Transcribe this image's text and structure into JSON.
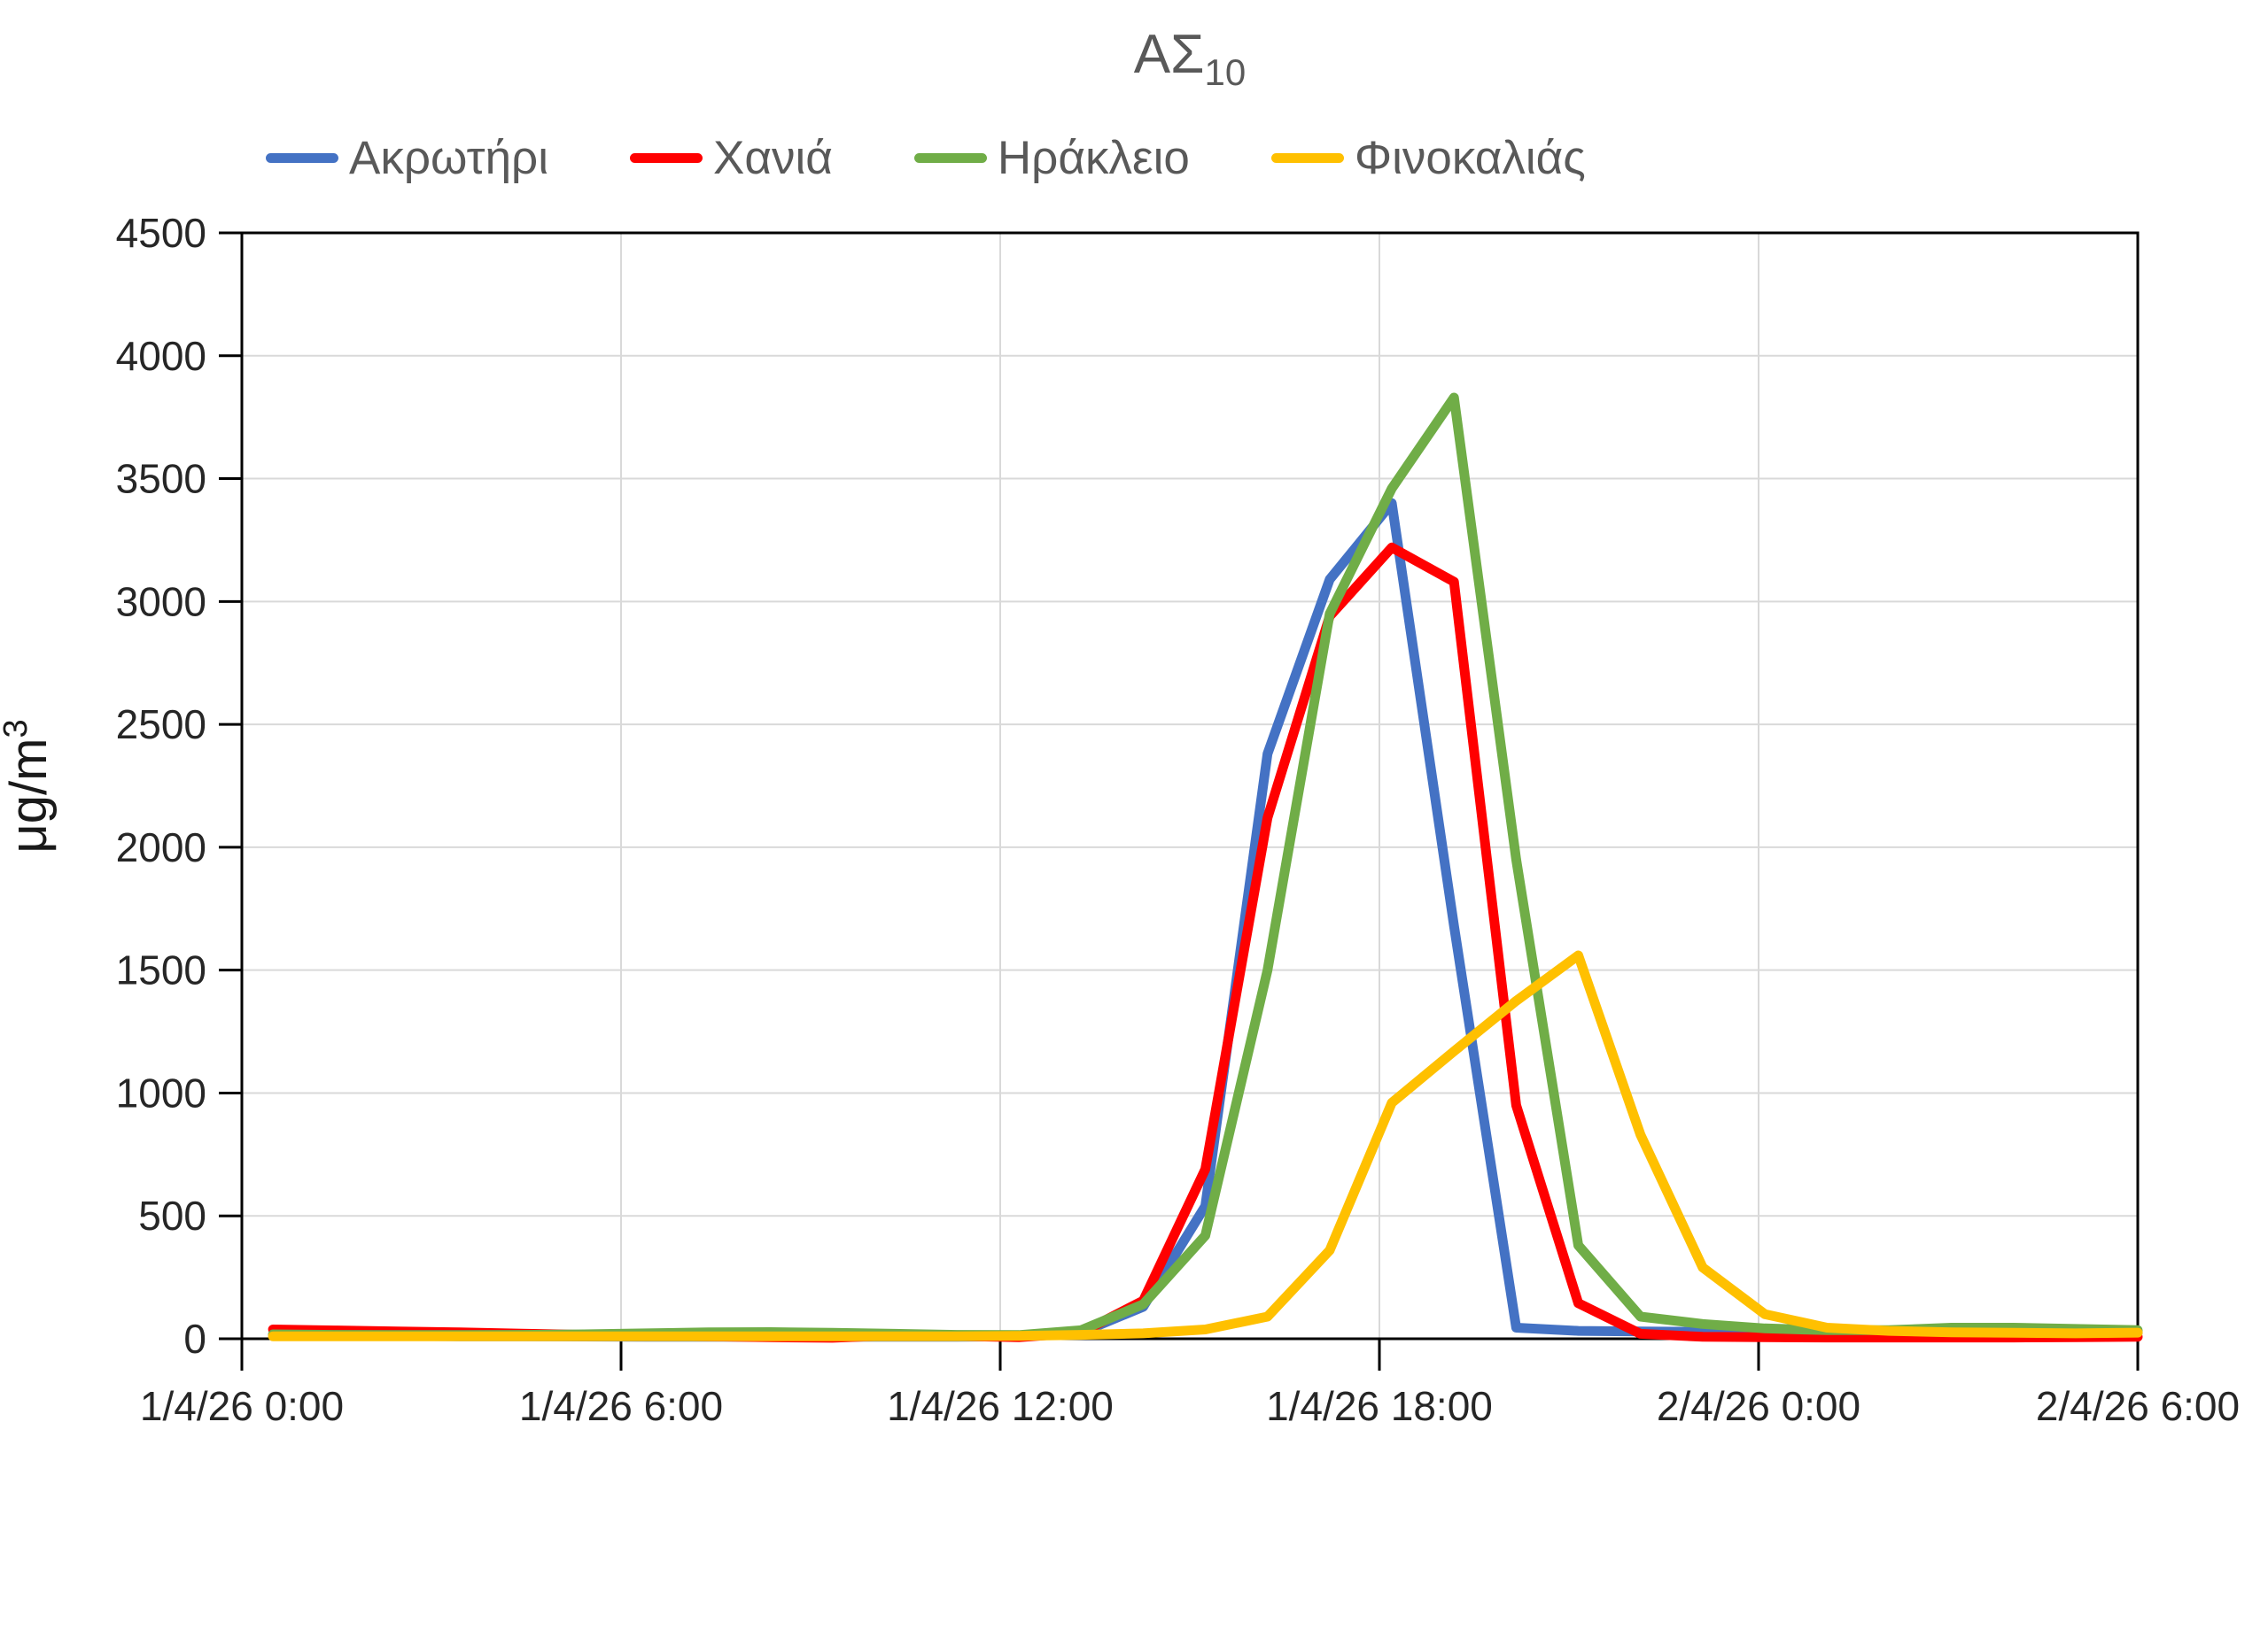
{
  "title": {
    "text": "ΑΣ",
    "subscript": "10"
  },
  "y_axis": {
    "label_main": "μg/m",
    "label_superscript": "3",
    "tick_labels": [
      "0",
      "500",
      "1000",
      "1500",
      "2000",
      "2500",
      "3000",
      "3500",
      "4000",
      "4500"
    ],
    "max": 4500
  },
  "x_axis": {
    "tick_labels": [
      "1/4/26 0:00",
      "1/4/26 6:00",
      "1/4/26 12:00",
      "1/4/26 18:00",
      "2/4/26 0:00",
      "2/4/26 6:00"
    ],
    "tick_hours": [
      0,
      6,
      12,
      18,
      24,
      30
    ]
  },
  "legend": {
    "items": [
      {
        "label": "Ακρωτήρι",
        "color": "#4472C4"
      },
      {
        "label": "Χανιά",
        "color": "#FF0000"
      },
      {
        "label": "Ηράκλειο",
        "color": "#70AD47"
      },
      {
        "label": "Φινοκαλιάς",
        "color": "#FFC000"
      }
    ]
  },
  "colors": {
    "gridline": "#D9D9D9",
    "axis": "#000000",
    "tick_text": "#262626",
    "muted_text": "#595959"
  },
  "chart_data": {
    "type": "line",
    "title": "ΑΣ10",
    "ylabel": "μg/m3",
    "ylim": [
      0,
      4500
    ],
    "y_tick_step": 500,
    "grid": true,
    "legend_position": "top",
    "x_hours": [
      0,
      1,
      2,
      3,
      4,
      5,
      6,
      7,
      8,
      9,
      10,
      11,
      12,
      13,
      14,
      15,
      16,
      17,
      18,
      19,
      20,
      21,
      22,
      23,
      24,
      25,
      26,
      27,
      28,
      29,
      30
    ],
    "x_tick_labels": [
      "1/4/26 0:00",
      "1/4/26 6:00",
      "1/4/26 12:00",
      "1/4/26 18:00",
      "2/4/26 0:00",
      "2/4/26 6:00"
    ],
    "x_tick_hours": [
      0,
      6,
      12,
      18,
      24,
      30
    ],
    "series": [
      {
        "name": "Ακρωτήρι",
        "color": "#4472C4",
        "values": [
          15,
          13,
          12,
          10,
          10,
          9,
          8,
          8,
          8,
          8,
          8,
          8,
          10,
          25,
          130,
          540,
          2380,
          3090,
          3400,
          1680,
          45,
          32,
          30,
          28,
          25,
          22,
          20,
          20,
          20,
          22,
          25
        ]
      },
      {
        "name": "Χανιά",
        "color": "#FF0000",
        "values": [
          38,
          34,
          30,
          26,
          21,
          16,
          13,
          10,
          6,
          4,
          14,
          11,
          6,
          25,
          155,
          690,
          2120,
          2940,
          3220,
          3080,
          950,
          145,
          20,
          8,
          6,
          5,
          5,
          5,
          5,
          6,
          8
        ]
      },
      {
        "name": "Ηράκλειο",
        "color": "#70AD47",
        "values": [
          18,
          16,
          15,
          15,
          16,
          18,
          22,
          26,
          27,
          24,
          20,
          16,
          15,
          35,
          140,
          420,
          1500,
          2950,
          3460,
          3830,
          1950,
          380,
          90,
          60,
          42,
          35,
          35,
          45,
          45,
          40,
          35
        ]
      },
      {
        "name": "Φινοκαλιάς",
        "color": "#FFC000",
        "values": [
          10,
          10,
          10,
          10,
          10,
          10,
          10,
          10,
          10,
          10,
          10,
          10,
          12,
          16,
          22,
          38,
          90,
          360,
          960,
          1170,
          1375,
          1560,
          830,
          290,
          100,
          45,
          32,
          26,
          24,
          22,
          25
        ]
      }
    ]
  }
}
